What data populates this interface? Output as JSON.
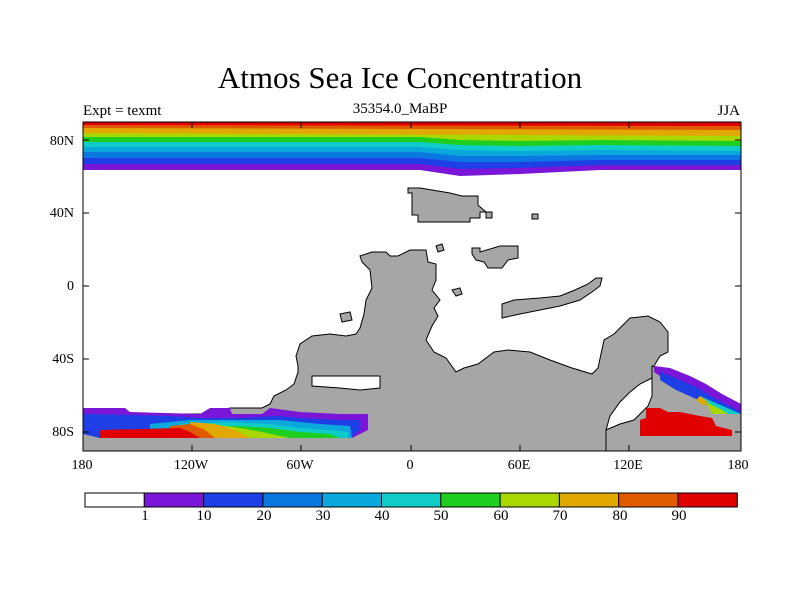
{
  "figure": {
    "title": "Atmos Sea Ice Concentration",
    "subtitle": "35354.0_MaBP",
    "left_label": "Expt = texmt",
    "right_label": "JJA"
  },
  "axes": {
    "y_ticks": [
      "80N",
      "40N",
      "0",
      "40S",
      "80S"
    ],
    "x_ticks": [
      "180",
      "120W",
      "60W",
      "0",
      "60E",
      "120E",
      "180"
    ]
  },
  "colorbar": {
    "labels": [
      "1",
      "10",
      "20",
      "30",
      "40",
      "50",
      "60",
      "70",
      "80",
      "90"
    ],
    "colors": [
      "#ffffff",
      "#7a16d8",
      "#1e3ee6",
      "#0a78e0",
      "#0aa8dc",
      "#10ccc8",
      "#1fcf1f",
      "#a8d800",
      "#e0a800",
      "#e05a00",
      "#e00000"
    ]
  },
  "colors": {
    "land": "#a6a6a6",
    "land_edge": "#000000"
  }
}
